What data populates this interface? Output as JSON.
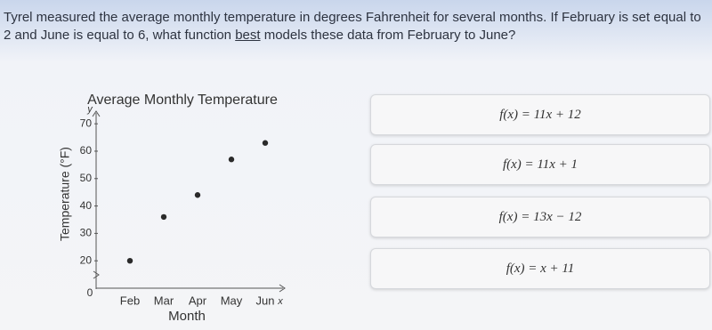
{
  "question": {
    "segments": [
      "Tyrel measured the average monthly temperature in degrees Fahrenheit for several months. If February is set equal to 2 and June is equal to 6, what function ",
      "best",
      " models these data from February to June?"
    ]
  },
  "chart_data": {
    "type": "scatter",
    "title": "Average Monthly Temperature",
    "x_label": "Month",
    "y_label": "Temperature (°F)",
    "x_axis_letter": "x",
    "y_axis_letter": "y",
    "origin_label": "0",
    "categories": [
      "Feb",
      "Mar",
      "Apr",
      "May",
      "Jun"
    ],
    "values": [
      20,
      36,
      44,
      57,
      63
    ],
    "color": "#2a2a2a",
    "ylim": [
      10,
      72
    ],
    "yticks": [
      20,
      30,
      40,
      50,
      60,
      70
    ],
    "grid": false
  },
  "choices": [
    "f(x) = 11x + 12",
    "f(x) = 11x + 1",
    "f(x) = 13x − 12",
    "f(x) = x + 11"
  ]
}
